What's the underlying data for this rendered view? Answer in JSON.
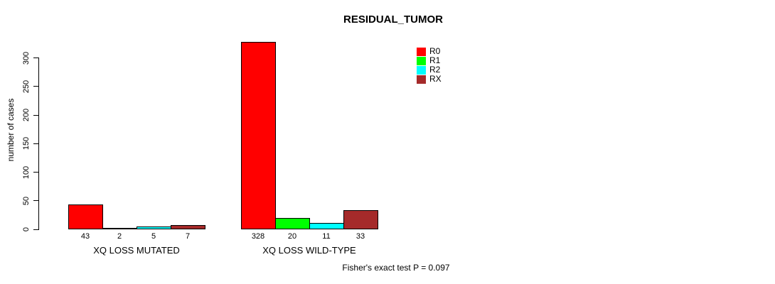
{
  "chart_data": {
    "type": "bar",
    "title": "RESIDUAL_TUMOR",
    "ylabel": "number of cases",
    "xlabel": "",
    "ylim": [
      0,
      330
    ],
    "yticks": [
      0,
      50,
      100,
      150,
      200,
      250,
      300
    ],
    "grid": false,
    "legend_position": "top-right",
    "categories": [
      "XQ LOSS MUTATED",
      "XQ LOSS WILD-TYPE"
    ],
    "series": [
      {
        "name": "R0",
        "color": "#FF0000",
        "values": [
          43,
          328
        ]
      },
      {
        "name": "R1",
        "color": "#00FF00",
        "values": [
          2,
          20
        ]
      },
      {
        "name": "R2",
        "color": "#00FFFF",
        "values": [
          5,
          11
        ]
      },
      {
        "name": "RX",
        "color": "#A52A2A",
        "values": [
          7,
          33
        ]
      }
    ],
    "bar_value_labels": [
      [
        "43",
        "2",
        "5",
        "7"
      ],
      [
        "328",
        "20",
        "11",
        "33"
      ]
    ],
    "annotation": "Fisher's exact test P = 0.097"
  }
}
